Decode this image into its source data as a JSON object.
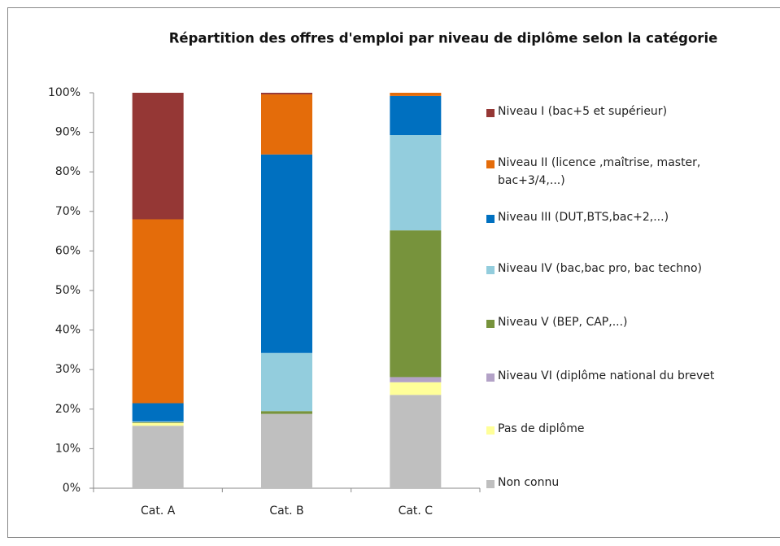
{
  "chart_data": {
    "type": "stacked_bar",
    "title": "Répartition des offres d'emploi par niveau de diplôme selon la catégorie",
    "categories": [
      "Cat. A",
      "Cat. B",
      "Cat. C"
    ],
    "series": [
      {
        "name": "Non connu",
        "color": "#bfbfbf",
        "values": [
          15.8,
          18.8,
          23.6
        ]
      },
      {
        "name": "Pas de diplôme",
        "color": "#ffff99",
        "values": [
          0.7,
          0,
          3.2
        ]
      },
      {
        "name": "Niveau VI (diplôme national du brevet",
        "color": "#b3a2c7",
        "values": [
          0,
          0,
          1.3
        ]
      },
      {
        "name": "Niveau V (BEP,  CAP,...)",
        "color": "#77933c",
        "values": [
          0.2,
          0.7,
          37.1
        ]
      },
      {
        "name": "Niveau IV (bac,bac pro, bac techno)",
        "color": "#93cddd",
        "values": [
          0.2,
          14.7,
          24.1
        ]
      },
      {
        "name": "Niveau III (DUT,BTS,bac+2,...)",
        "color": "#0070c0",
        "values": [
          4.6,
          50.2,
          9.9
        ]
      },
      {
        "name": "Niveau II (licence ,maîtrise, master, bac+3/4,...)",
        "color": "#e46c0a",
        "values": [
          46.5,
          15.2,
          0.8
        ]
      },
      {
        "name": "Niveau I (bac+5 et supérieur)",
        "color": "#953735",
        "values": [
          32,
          0.4,
          0
        ]
      }
    ],
    "ylim": [
      0,
      100
    ],
    "yticks": [
      {
        "value": 0,
        "label": "0%"
      },
      {
        "value": 10,
        "label": "10%"
      },
      {
        "value": 20,
        "label": "20%"
      },
      {
        "value": 30,
        "label": "30%"
      },
      {
        "value": 40,
        "label": "40%"
      },
      {
        "value": 50,
        "label": "50%"
      },
      {
        "value": 60,
        "label": "60%"
      },
      {
        "value": 70,
        "label": "70%"
      },
      {
        "value": 80,
        "label": "80%"
      },
      {
        "value": 90,
        "label": "90%"
      },
      {
        "value": 100,
        "label": "100%"
      }
    ],
    "grid": false,
    "legend": "right"
  }
}
